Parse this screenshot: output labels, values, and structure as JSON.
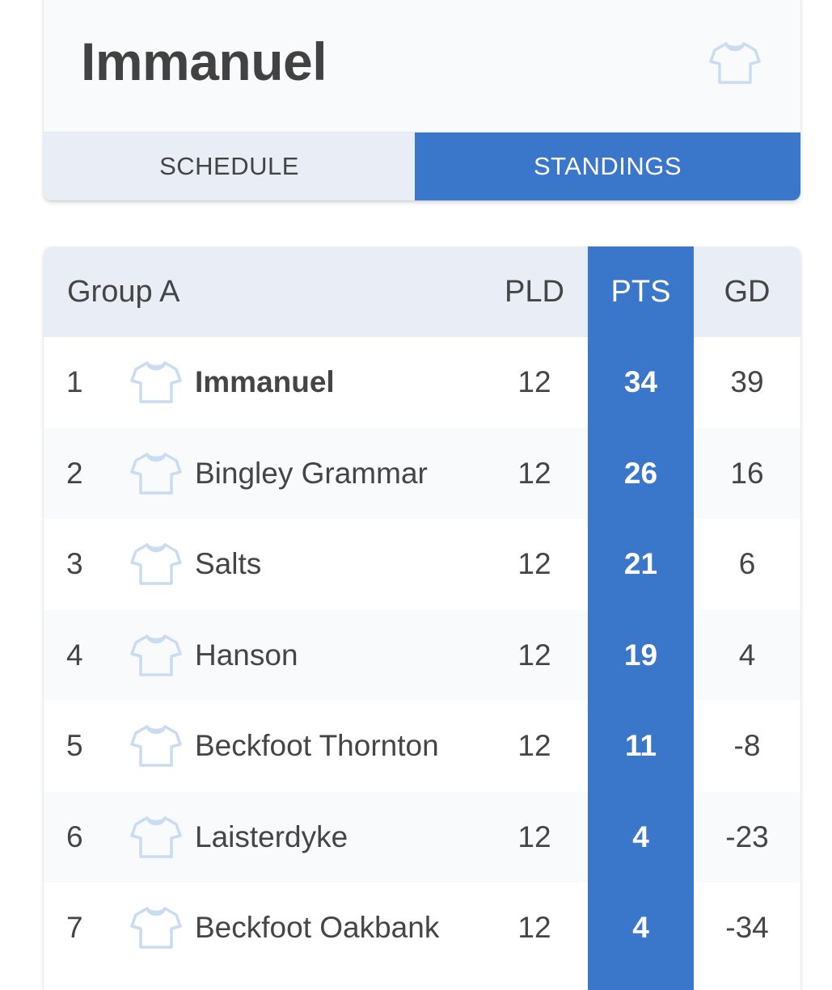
{
  "team": {
    "title": "Immanuel",
    "kit_icon": "shirt-icon"
  },
  "tabs": [
    {
      "label": "SCHEDULE",
      "active": false
    },
    {
      "label": "STANDINGS",
      "active": true
    }
  ],
  "colors": {
    "accent": "#3a76ca",
    "shirt_outline": "#c9dcf2",
    "header_bg": "#e9eef6",
    "row_alt_bg": "#f9fafc"
  },
  "standings": {
    "group_label": "Group A",
    "columns": {
      "pld": "PLD",
      "pts": "PTS",
      "gd": "GD"
    },
    "rows": [
      {
        "pos": "1",
        "team": "Immanuel",
        "pld": "12",
        "pts": "34",
        "gd": "39",
        "highlight": true
      },
      {
        "pos": "2",
        "team": "Bingley Grammar",
        "pld": "12",
        "pts": "26",
        "gd": "16"
      },
      {
        "pos": "3",
        "team": "Salts",
        "pld": "12",
        "pts": "21",
        "gd": "6"
      },
      {
        "pos": "4",
        "team": "Hanson",
        "pld": "12",
        "pts": "19",
        "gd": "4"
      },
      {
        "pos": "5",
        "team": "Beckfoot Thornton",
        "pld": "12",
        "pts": "11",
        "gd": "-8"
      },
      {
        "pos": "6",
        "team": "Laisterdyke",
        "pld": "12",
        "pts": "4",
        "gd": "-23"
      },
      {
        "pos": "7",
        "team": "Beckfoot Oakbank",
        "pld": "12",
        "pts": "4",
        "gd": "-34"
      }
    ]
  }
}
